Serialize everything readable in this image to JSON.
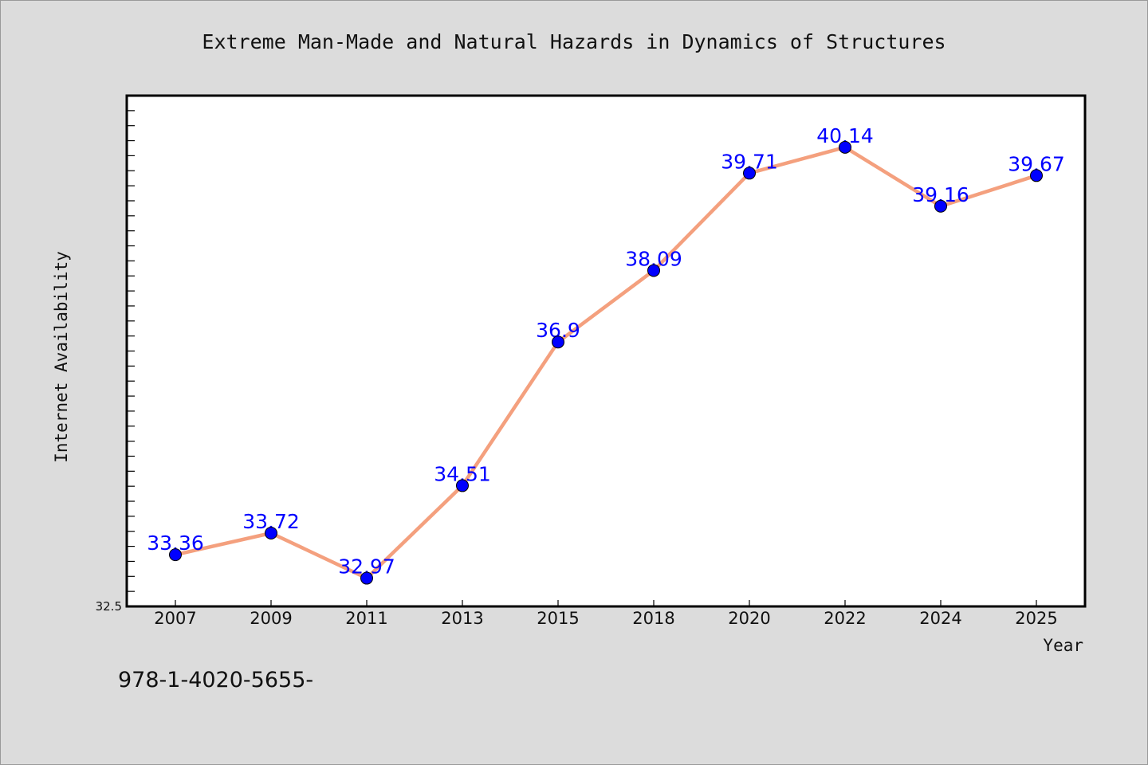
{
  "chart_data": {
    "type": "line",
    "title": "Extreme Man-Made and Natural Hazards in Dynamics of Structures",
    "xlabel": "Year",
    "ylabel": "Internet Availability",
    "categories": [
      "2007",
      "2009",
      "2011",
      "2013",
      "2015",
      "2018",
      "2020",
      "2022",
      "2024",
      "2025"
    ],
    "series": [
      {
        "values": [
          33.36,
          33.72,
          32.97,
          34.51,
          36.9,
          38.09,
          39.71,
          40.14,
          39.16,
          39.67
        ],
        "data_labels": [
          "33.36",
          "33.72",
          "32.97",
          "34.51",
          "36.9",
          "38.09",
          "39.71",
          "40.14",
          "39.16",
          "39.67"
        ]
      }
    ],
    "ylim": [
      32.5,
      41.0
    ],
    "y_min_label": "32.5",
    "grid": false,
    "legend": "none",
    "colors": {
      "line": "#f4a07e",
      "marker": "#0000ff",
      "label": "#0000ff",
      "plot_bg": "#ffffff",
      "page_bg": "#dcdcdc"
    }
  },
  "footnote": "978-1-4020-5655-"
}
